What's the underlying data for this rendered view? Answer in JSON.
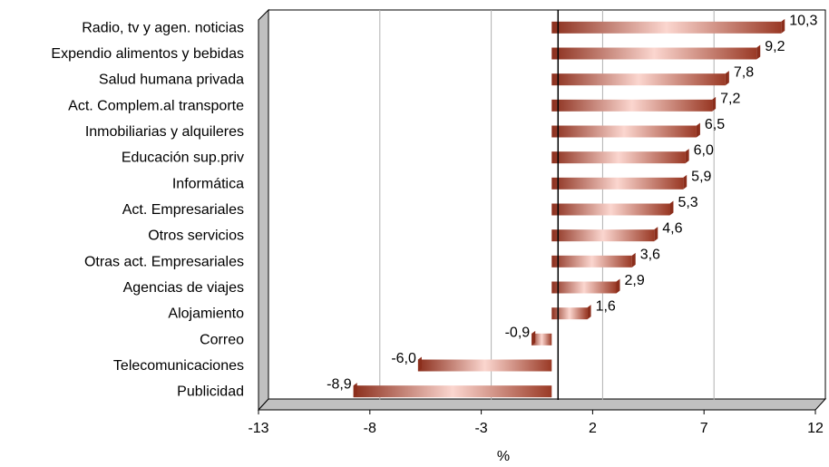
{
  "chart_data": {
    "type": "bar",
    "orientation": "horizontal",
    "categories": [
      "Radio, tv y agen. noticias",
      "Expendio alimentos y bebidas",
      "Salud humana privada",
      "Act. Complem.al transporte",
      "Inmobiliarias y alquileres",
      "Educación sup.priv",
      "Informática",
      "Act. Empresariales",
      "Otros servicios",
      "Otras act. Empresariales",
      "Agencias de viajes",
      "Alojamiento",
      "Correo",
      "Telecomunicaciones",
      "Publicidad"
    ],
    "values": [
      10.3,
      9.2,
      7.8,
      7.2,
      6.5,
      6.0,
      5.9,
      5.3,
      4.6,
      3.6,
      2.9,
      1.6,
      -0.9,
      -6.0,
      -8.9
    ],
    "value_labels": [
      "10,3",
      "9,2",
      "7,8",
      "7,2",
      "6,5",
      "6,0",
      "5,9",
      "5,3",
      "4,6",
      "3,6",
      "2,9",
      "1,6",
      "-0,9",
      "-6,0",
      "-8,9"
    ],
    "xlabel": "%",
    "xlim": [
      -13,
      12
    ],
    "xticks": [
      -13,
      -8,
      -3,
      2,
      7,
      12
    ],
    "grid": "vertical",
    "colors": {
      "bar_dark": "#8b2e1c",
      "bar_light": "#f9d3cc",
      "wall": "#c0c0c0",
      "grid": "#b0b0b0"
    }
  }
}
